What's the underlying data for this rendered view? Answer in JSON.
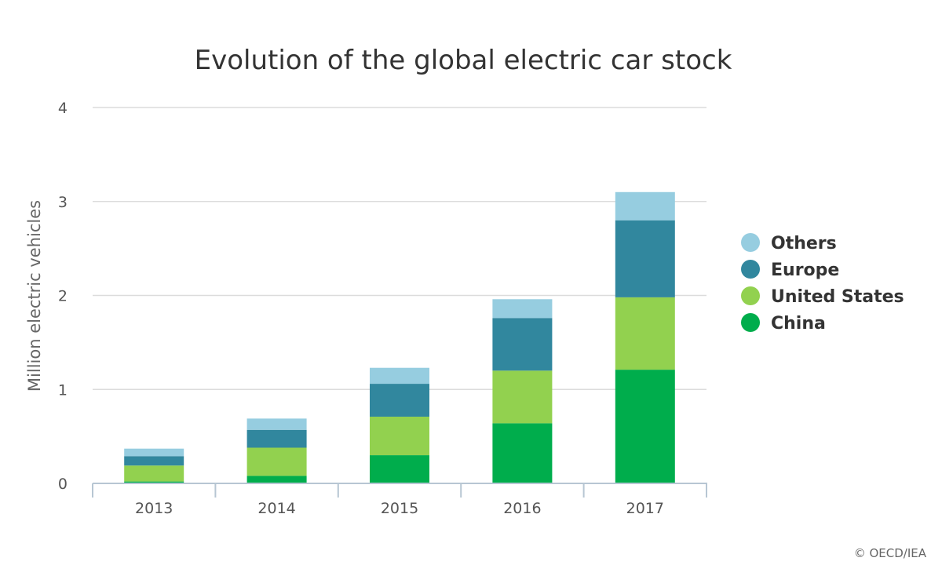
{
  "chart_data": {
    "type": "bar",
    "stacked": true,
    "title": "Evolution of the global electric car stock",
    "xlabel": "",
    "ylabel": "Million electric vehicles",
    "categories": [
      "2013",
      "2014",
      "2015",
      "2016",
      "2017"
    ],
    "ylim": [
      0,
      4
    ],
    "yticks": [
      "0",
      "1",
      "2",
      "3",
      "4"
    ],
    "grid": true,
    "legend_position": "right",
    "series": [
      {
        "name": "China",
        "color": "#00ad4c",
        "values": [
          0.02,
          0.08,
          0.3,
          0.64,
          1.21
        ]
      },
      {
        "name": "United States",
        "color": "#92d14f",
        "values": [
          0.17,
          0.3,
          0.41,
          0.56,
          0.77
        ]
      },
      {
        "name": "Europe",
        "color": "#31879e",
        "values": [
          0.1,
          0.19,
          0.35,
          0.56,
          0.82
        ]
      },
      {
        "name": "Others",
        "color": "#96cde0",
        "values": [
          0.08,
          0.12,
          0.17,
          0.2,
          0.3
        ]
      }
    ],
    "legend_order": [
      "Others",
      "Europe",
      "United States",
      "China"
    ],
    "credit": "© OECD/IEA"
  }
}
